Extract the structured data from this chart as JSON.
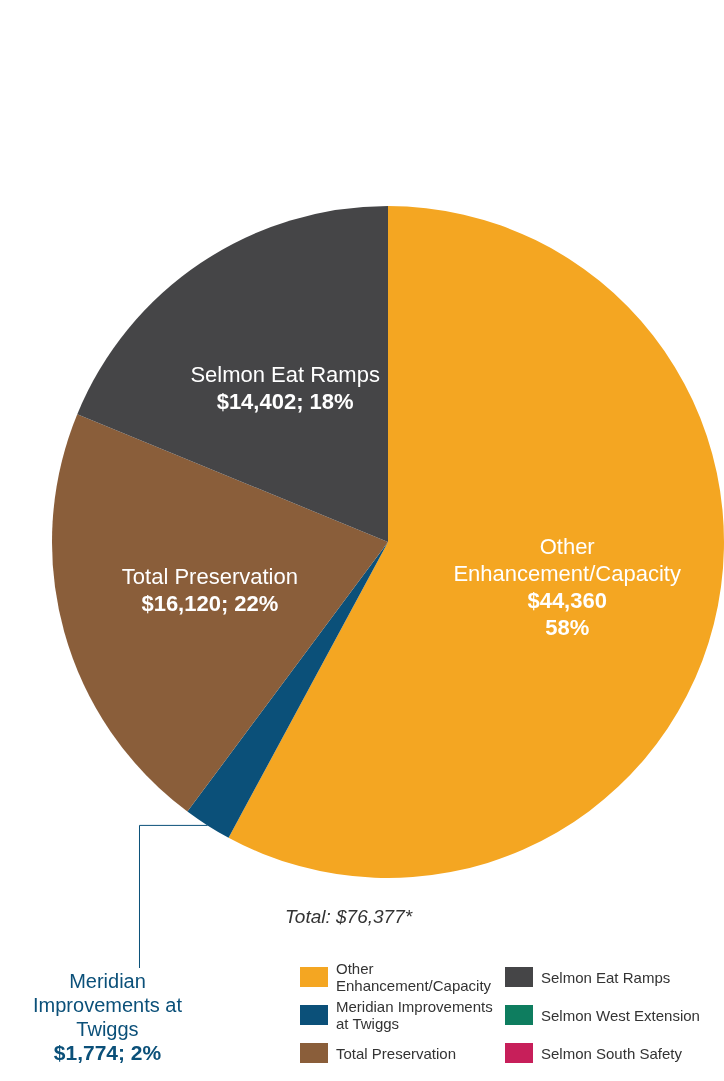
{
  "chart_data": {
    "type": "pie",
    "categories": [
      "Other Enhancement/Capacity",
      "Meridian Improvements at Twiggs",
      "Total Preservation",
      "Selmon Eat Ramps",
      "Selmon West Extension",
      "Selmon South Safety"
    ],
    "values": [
      44360,
      1774,
      16120,
      14402,
      0,
      0
    ],
    "colors": [
      "#f4a622",
      "#0b5079",
      "#8a5e3a",
      "#454547",
      "#0e7d5f",
      "#c71f5a"
    ],
    "value_labels": [
      "$44,360\n58%",
      "$1,774; 2%",
      "$16,120; 22%",
      "$14,402; 18%",
      null,
      null
    ],
    "annotations": [
      "Total: $76,377*"
    ],
    "legend": "bottom right"
  }
}
